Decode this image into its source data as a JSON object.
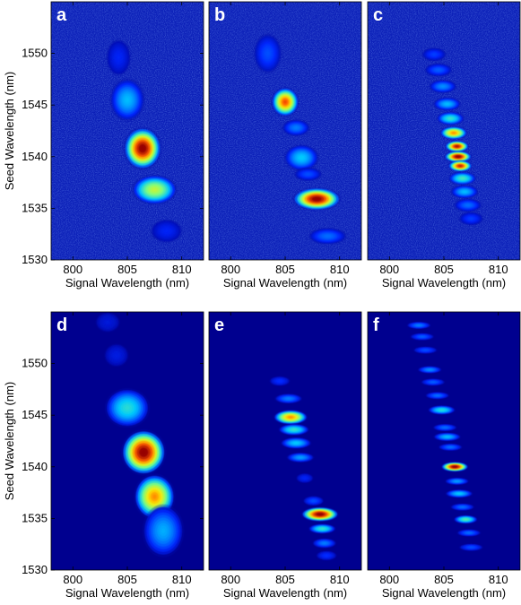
{
  "chart_data": [
    {
      "panel": "a",
      "type": "heatmap",
      "xlabel": "Signal Wavelength (nm)",
      "ylabel": "Seed Wavelength (nm)",
      "xlim": [
        798,
        812
      ],
      "ylim": [
        1530,
        1555
      ],
      "xticks": [
        800,
        805,
        810
      ],
      "yticks": [
        1530,
        1535,
        1540,
        1545,
        1550
      ],
      "background": "#0b1fb8",
      "spots": [
        {
          "x": 804.2,
          "y": 1549.6,
          "sx": 0.7,
          "sy": 1.1,
          "v": 0.1
        },
        {
          "x": 805.0,
          "y": 1545.5,
          "sx": 1.0,
          "sy": 1.3,
          "v": 0.3
        },
        {
          "x": 806.4,
          "y": 1540.8,
          "sx": 1.1,
          "sy": 1.3,
          "v": 1.0
        },
        {
          "x": 807.5,
          "y": 1536.8,
          "sx": 1.3,
          "sy": 0.9,
          "v": 0.6
        },
        {
          "x": 808.6,
          "y": 1532.8,
          "sx": 0.9,
          "sy": 0.7,
          "v": 0.1
        }
      ]
    },
    {
      "panel": "b",
      "type": "heatmap",
      "xlabel": "Signal Wavelength (nm)",
      "ylabel": "",
      "xlim": [
        798,
        812
      ],
      "ylim": [
        1530,
        1555
      ],
      "xticks": [
        800,
        805,
        810
      ],
      "yticks": [],
      "background": "#0b1fb8",
      "spots": [
        {
          "x": 803.4,
          "y": 1550.0,
          "sx": 0.8,
          "sy": 1.2,
          "v": 0.16
        },
        {
          "x": 805.0,
          "y": 1545.3,
          "sx": 0.8,
          "sy": 0.9,
          "v": 0.85
        },
        {
          "x": 806.0,
          "y": 1542.8,
          "sx": 0.8,
          "sy": 0.5,
          "v": 0.22
        },
        {
          "x": 806.5,
          "y": 1539.9,
          "sx": 1.0,
          "sy": 0.8,
          "v": 0.32
        },
        {
          "x": 807.1,
          "y": 1538.3,
          "sx": 0.8,
          "sy": 0.4,
          "v": 0.16
        },
        {
          "x": 807.9,
          "y": 1535.9,
          "sx": 1.4,
          "sy": 0.7,
          "v": 1.0
        },
        {
          "x": 808.9,
          "y": 1532.3,
          "sx": 1.1,
          "sy": 0.5,
          "v": 0.2
        }
      ]
    },
    {
      "panel": "c",
      "type": "heatmap",
      "xlabel": "Signal Wavelength (nm)",
      "ylabel": "",
      "xlim": [
        798,
        812
      ],
      "ylim": [
        1530,
        1555
      ],
      "xticks": [
        800,
        805,
        810
      ],
      "yticks": [],
      "background": "#0b1fb8",
      "spots": [
        {
          "x": 804.1,
          "y": 1549.9,
          "sx": 0.7,
          "sy": 0.4,
          "v": 0.14
        },
        {
          "x": 804.5,
          "y": 1548.4,
          "sx": 0.8,
          "sy": 0.4,
          "v": 0.18
        },
        {
          "x": 804.9,
          "y": 1546.8,
          "sx": 0.8,
          "sy": 0.4,
          "v": 0.24
        },
        {
          "x": 805.3,
          "y": 1545.1,
          "sx": 0.8,
          "sy": 0.4,
          "v": 0.3
        },
        {
          "x": 805.6,
          "y": 1543.7,
          "sx": 0.8,
          "sy": 0.4,
          "v": 0.4
        },
        {
          "x": 805.9,
          "y": 1542.3,
          "sx": 0.8,
          "sy": 0.4,
          "v": 0.78
        },
        {
          "x": 806.2,
          "y": 1541.0,
          "sx": 0.7,
          "sy": 0.35,
          "v": 0.95
        },
        {
          "x": 806.3,
          "y": 1540.0,
          "sx": 0.8,
          "sy": 0.35,
          "v": 1.0
        },
        {
          "x": 806.5,
          "y": 1539.1,
          "sx": 0.7,
          "sy": 0.35,
          "v": 0.92
        },
        {
          "x": 806.7,
          "y": 1537.9,
          "sx": 0.8,
          "sy": 0.4,
          "v": 0.42
        },
        {
          "x": 806.9,
          "y": 1536.6,
          "sx": 0.8,
          "sy": 0.4,
          "v": 0.3
        },
        {
          "x": 807.2,
          "y": 1535.3,
          "sx": 0.8,
          "sy": 0.4,
          "v": 0.2
        },
        {
          "x": 807.5,
          "y": 1534.0,
          "sx": 0.7,
          "sy": 0.4,
          "v": 0.14
        }
      ]
    },
    {
      "panel": "d",
      "type": "heatmap",
      "xlabel": "Signal Wavelength (nm)",
      "ylabel": "Seed Wavelength (nm)",
      "xlim": [
        798,
        812
      ],
      "ylim": [
        1530,
        1555
      ],
      "xticks": [
        800,
        805,
        810
      ],
      "yticks": [
        1530,
        1535,
        1540,
        1545,
        1550
      ],
      "background": "#00008f",
      "spots": [
        {
          "x": 803.2,
          "y": 1554.0,
          "sx": 0.7,
          "sy": 0.6,
          "v": 0.06
        },
        {
          "x": 804.0,
          "y": 1550.8,
          "sx": 0.7,
          "sy": 0.7,
          "v": 0.07
        },
        {
          "x": 805.0,
          "y": 1545.7,
          "sx": 1.3,
          "sy": 1.2,
          "v": 0.38
        },
        {
          "x": 806.5,
          "y": 1541.4,
          "sx": 1.3,
          "sy": 1.4,
          "v": 1.0
        },
        {
          "x": 807.5,
          "y": 1537.1,
          "sx": 1.2,
          "sy": 1.4,
          "v": 0.78
        },
        {
          "x": 808.3,
          "y": 1533.8,
          "sx": 1.2,
          "sy": 1.6,
          "v": 0.28
        }
      ]
    },
    {
      "panel": "e",
      "type": "heatmap",
      "xlabel": "Signal Wavelength (nm)",
      "ylabel": "",
      "xlim": [
        798,
        812
      ],
      "ylim": [
        1530,
        1555
      ],
      "xticks": [
        800,
        805,
        810
      ],
      "yticks": [],
      "background": "#00008f",
      "spots": [
        {
          "x": 804.5,
          "y": 1548.3,
          "sx": 0.6,
          "sy": 0.3,
          "v": 0.12
        },
        {
          "x": 805.3,
          "y": 1546.6,
          "sx": 0.8,
          "sy": 0.3,
          "v": 0.22
        },
        {
          "x": 805.5,
          "y": 1544.8,
          "sx": 1.0,
          "sy": 0.45,
          "v": 0.78
        },
        {
          "x": 805.8,
          "y": 1543.6,
          "sx": 0.9,
          "sy": 0.35,
          "v": 0.4
        },
        {
          "x": 806.0,
          "y": 1542.3,
          "sx": 0.9,
          "sy": 0.35,
          "v": 0.32
        },
        {
          "x": 806.4,
          "y": 1540.9,
          "sx": 0.8,
          "sy": 0.3,
          "v": 0.26
        },
        {
          "x": 806.8,
          "y": 1538.9,
          "sx": 0.5,
          "sy": 0.3,
          "v": 0.1
        },
        {
          "x": 807.6,
          "y": 1536.7,
          "sx": 0.6,
          "sy": 0.3,
          "v": 0.16
        },
        {
          "x": 808.2,
          "y": 1535.4,
          "sx": 1.1,
          "sy": 0.45,
          "v": 1.0
        },
        {
          "x": 808.4,
          "y": 1534.0,
          "sx": 0.8,
          "sy": 0.3,
          "v": 0.4
        },
        {
          "x": 808.6,
          "y": 1532.6,
          "sx": 0.7,
          "sy": 0.3,
          "v": 0.22
        },
        {
          "x": 808.8,
          "y": 1531.4,
          "sx": 0.6,
          "sy": 0.3,
          "v": 0.12
        }
      ]
    },
    {
      "panel": "f",
      "type": "heatmap",
      "xlabel": "Signal Wavelength (nm)",
      "ylabel": "",
      "xlim": [
        798,
        812
      ],
      "ylim": [
        1530,
        1555
      ],
      "xticks": [
        800,
        805,
        810
      ],
      "yticks": [],
      "background": "#00008f",
      "spots": [
        {
          "x": 802.7,
          "y": 1553.7,
          "sx": 0.7,
          "sy": 0.22,
          "v": 0.22
        },
        {
          "x": 803.0,
          "y": 1552.6,
          "sx": 0.7,
          "sy": 0.22,
          "v": 0.18
        },
        {
          "x": 803.3,
          "y": 1551.3,
          "sx": 0.7,
          "sy": 0.22,
          "v": 0.16
        },
        {
          "x": 803.7,
          "y": 1549.4,
          "sx": 0.7,
          "sy": 0.22,
          "v": 0.24
        },
        {
          "x": 804.0,
          "y": 1548.2,
          "sx": 0.7,
          "sy": 0.22,
          "v": 0.18
        },
        {
          "x": 804.4,
          "y": 1546.9,
          "sx": 0.7,
          "sy": 0.22,
          "v": 0.2
        },
        {
          "x": 804.8,
          "y": 1545.5,
          "sx": 0.8,
          "sy": 0.28,
          "v": 0.38
        },
        {
          "x": 805.1,
          "y": 1543.8,
          "sx": 0.7,
          "sy": 0.22,
          "v": 0.2
        },
        {
          "x": 805.3,
          "y": 1542.9,
          "sx": 0.8,
          "sy": 0.26,
          "v": 0.3
        },
        {
          "x": 805.6,
          "y": 1541.9,
          "sx": 0.7,
          "sy": 0.22,
          "v": 0.2
        },
        {
          "x": 806.0,
          "y": 1540.0,
          "sx": 0.8,
          "sy": 0.3,
          "v": 1.0
        },
        {
          "x": 806.2,
          "y": 1538.6,
          "sx": 0.7,
          "sy": 0.22,
          "v": 0.26
        },
        {
          "x": 806.4,
          "y": 1537.4,
          "sx": 0.8,
          "sy": 0.25,
          "v": 0.32
        },
        {
          "x": 806.7,
          "y": 1536.1,
          "sx": 0.7,
          "sy": 0.22,
          "v": 0.2
        },
        {
          "x": 807.0,
          "y": 1534.9,
          "sx": 0.7,
          "sy": 0.26,
          "v": 0.44
        },
        {
          "x": 807.3,
          "y": 1533.6,
          "sx": 0.7,
          "sy": 0.22,
          "v": 0.2
        },
        {
          "x": 807.5,
          "y": 1532.2,
          "sx": 0.7,
          "sy": 0.22,
          "v": 0.16
        }
      ]
    }
  ]
}
